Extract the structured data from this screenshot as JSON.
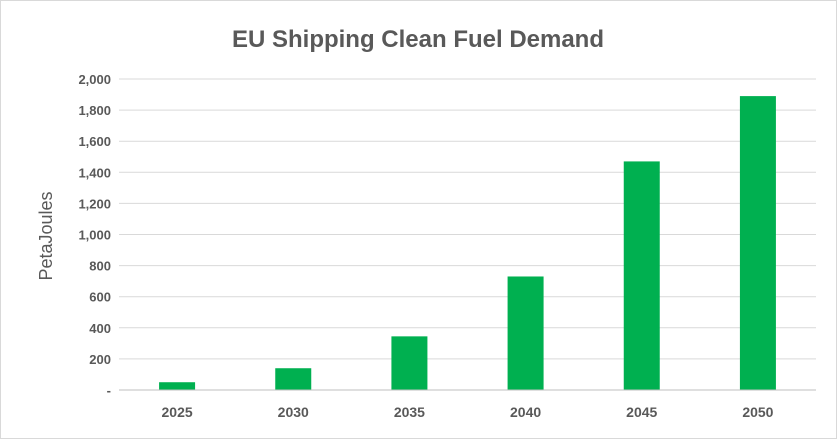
{
  "chart_data": {
    "type": "bar",
    "title": "EU Shipping Clean Fuel Demand",
    "xlabel": "",
    "ylabel": "PetaJoules",
    "categories": [
      "2025",
      "2030",
      "2035",
      "2040",
      "2045",
      "2050"
    ],
    "values": [
      50,
      140,
      345,
      730,
      1470,
      1890
    ],
    "ylim": [
      0,
      2000
    ],
    "yticks": [
      0,
      200,
      400,
      600,
      800,
      1000,
      1200,
      1400,
      1600,
      1800,
      2000
    ],
    "ytick_labels": [
      "-",
      "200",
      "400",
      "600",
      "800",
      "1,000",
      "1,200",
      "1,400",
      "1,600",
      "1,800",
      "2,000"
    ],
    "bar_color": "#00b050",
    "grid": true,
    "legend": "none"
  }
}
